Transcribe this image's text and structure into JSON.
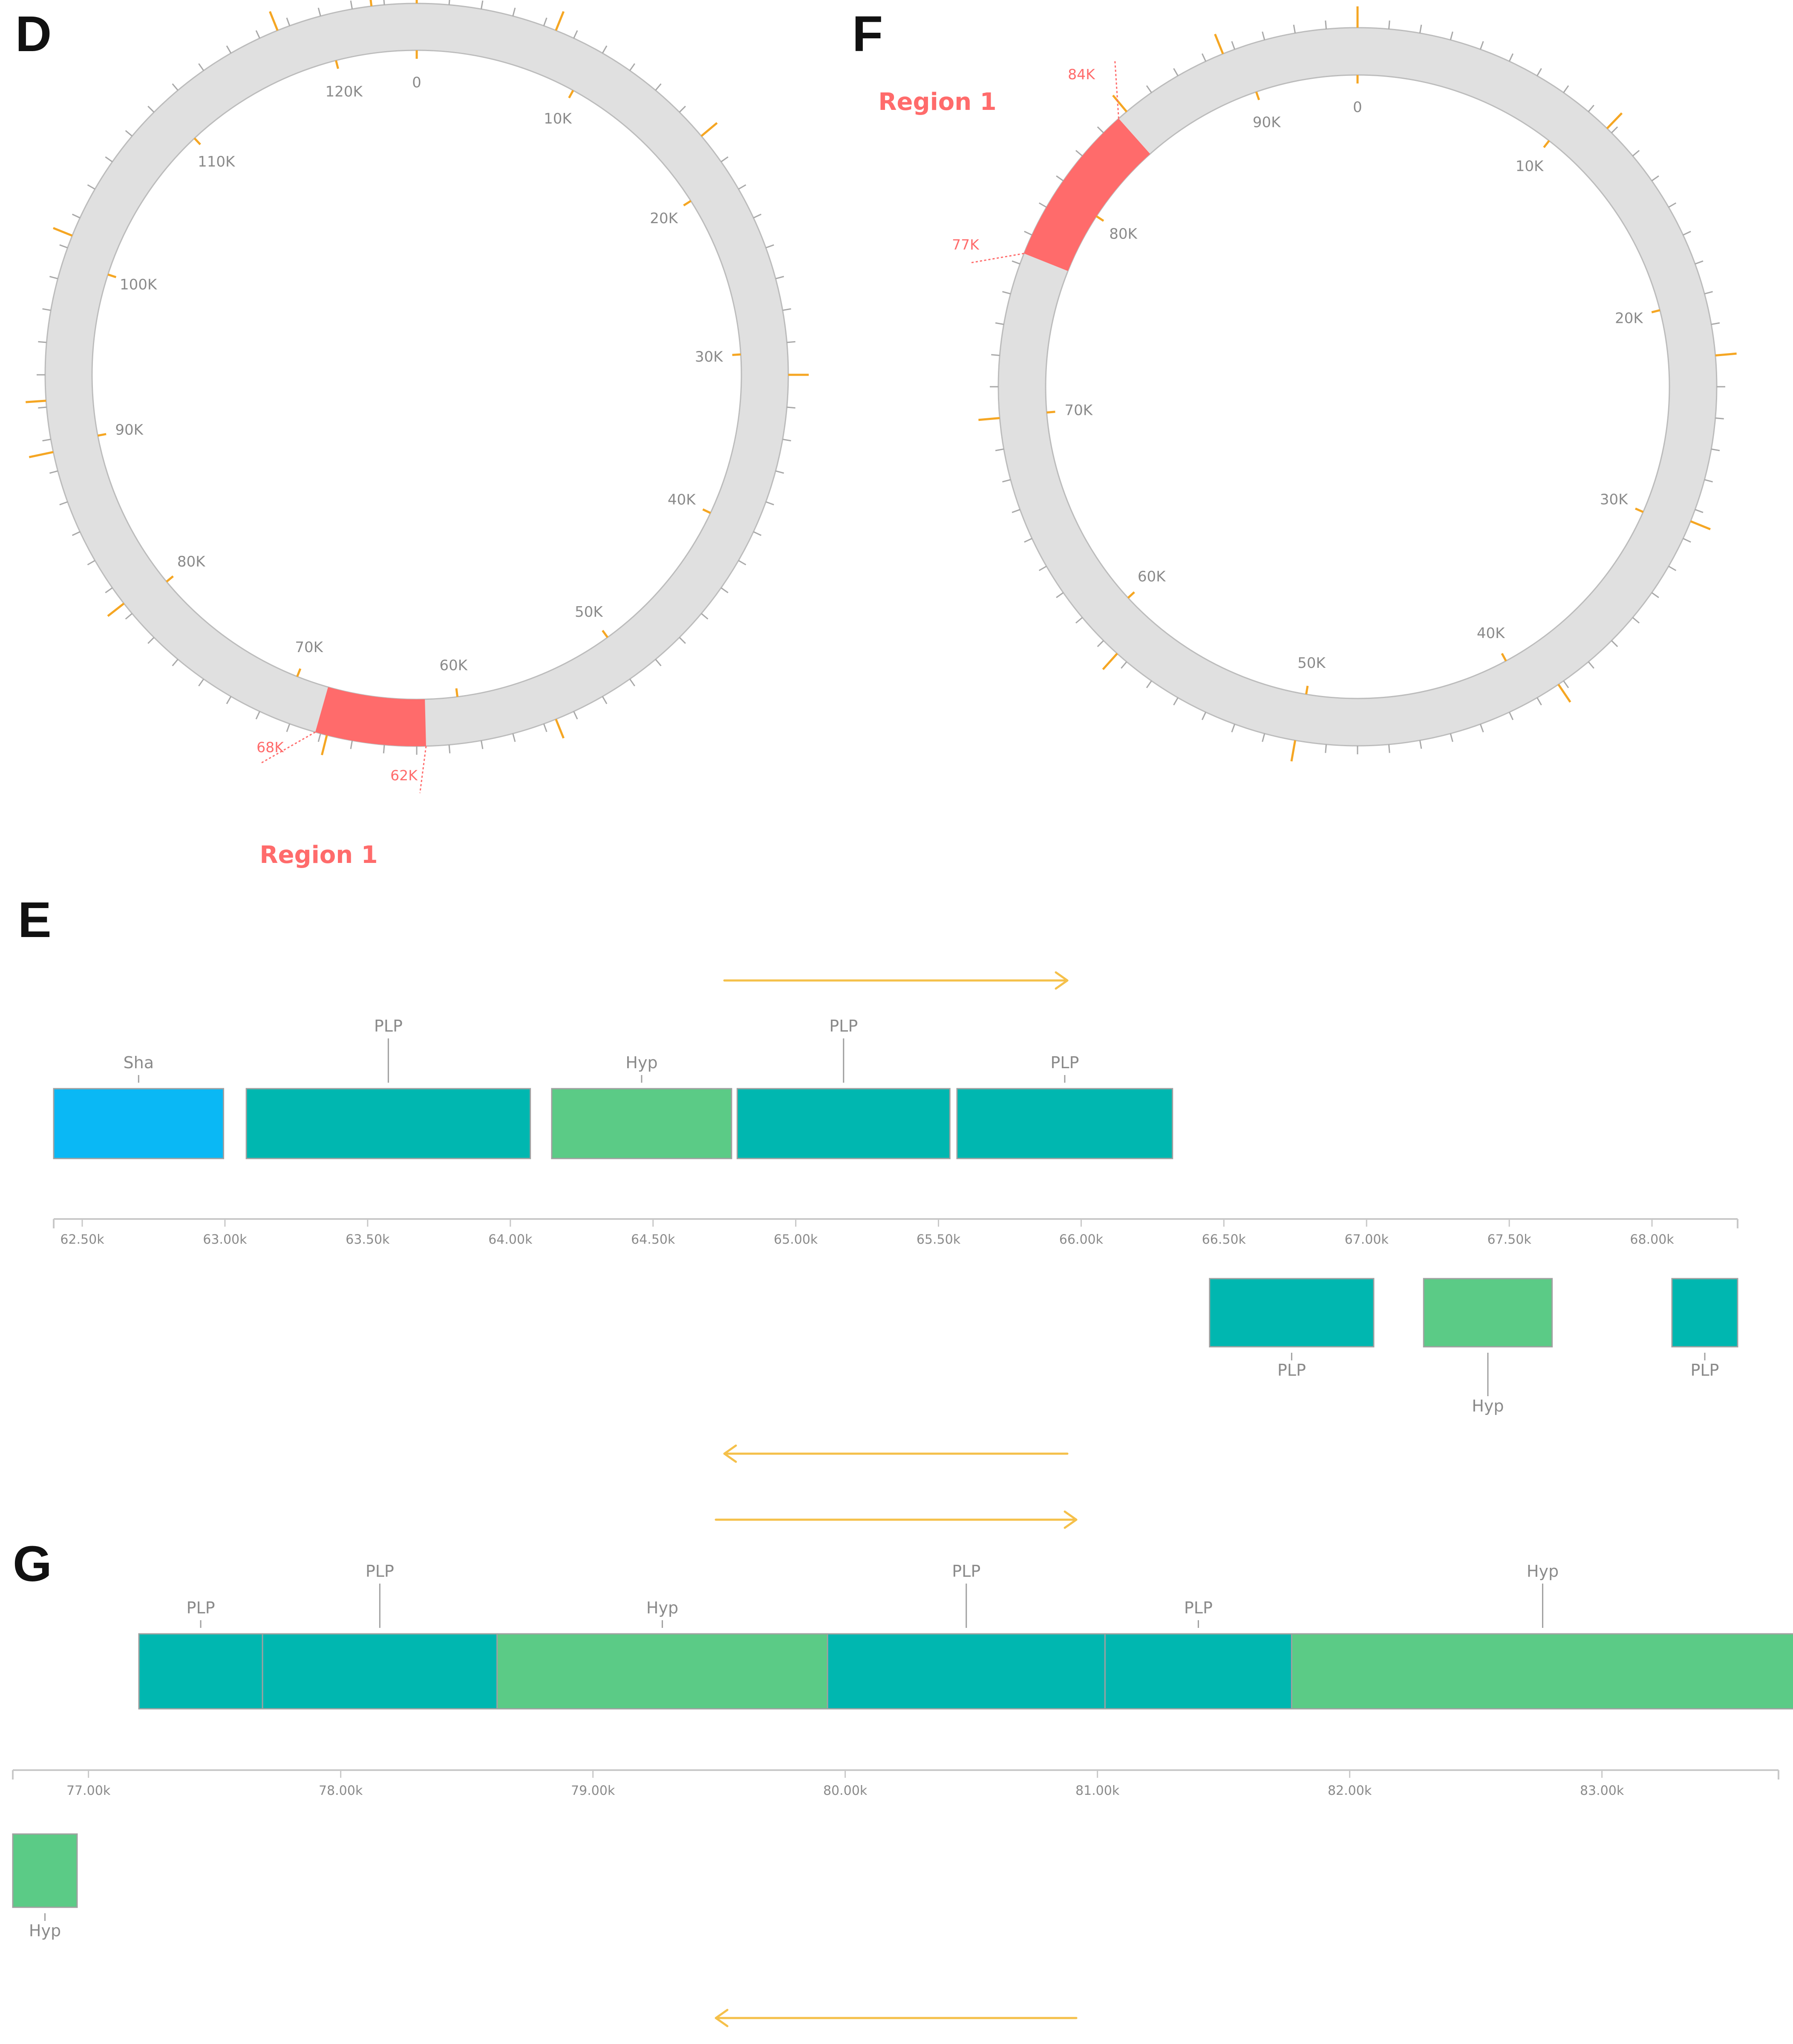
{
  "colors": {
    "ring": "#e0e0e0",
    "ring_stroke": "#bcbcbc",
    "region": "#ff6b6b",
    "tick": "#a8a8a8",
    "gc_tick": "#f5a623",
    "arrow": "#f5c04a",
    "PLP": "#00b7b0",
    "Hyp": "#5bcb86",
    "Sha": "#0ab8f5",
    "gene_stroke": "#a0a0a0",
    "axis": "#c8c8c8"
  },
  "panels": {
    "D": {
      "letter": "D",
      "genome_length": 125000,
      "position_labels": [
        "0",
        "10K",
        "20K",
        "30K",
        "40K",
        "50K",
        "60K",
        "70K",
        "80K",
        "90K",
        "100K",
        "110K",
        "120K"
      ],
      "region": {
        "title": "Region 1",
        "start": 62000,
        "end": 68000,
        "start_label": "62K",
        "end_label": "68K"
      }
    },
    "F": {
      "letter": "F",
      "genome_length": 95000,
      "position_labels": [
        "0",
        "10K",
        "20K",
        "30K",
        "40K",
        "50K",
        "60K",
        "70K",
        "80K",
        "90K"
      ],
      "region": {
        "title": "Region 1",
        "start": 77000,
        "end": 84000,
        "start_label": "77K",
        "end_label": "84K"
      }
    },
    "E": {
      "letter": "E",
      "axis": {
        "min": 62400,
        "max": 68300,
        "tick_labels": [
          "62.50k",
          "63.00k",
          "63.50k",
          "64.00k",
          "64.50k",
          "65.00k",
          "65.50k",
          "66.00k",
          "66.50k",
          "67.00k",
          "67.50k",
          "68.00k"
        ]
      },
      "forward_genes": [
        {
          "label": "Sha",
          "type": "Sha",
          "start": 62400,
          "end": 62995
        },
        {
          "label": "PLP",
          "type": "PLP",
          "start": 63075,
          "end": 64070
        },
        {
          "label": "Hyp",
          "type": "Hyp",
          "start": 64145,
          "end": 64775
        },
        {
          "label": "PLP",
          "type": "PLP",
          "start": 64795,
          "end": 65540
        },
        {
          "label": "PLP",
          "type": "PLP",
          "start": 65565,
          "end": 66320
        }
      ],
      "reverse_genes": [
        {
          "label": "PLP",
          "type": "PLP",
          "start": 66450,
          "end": 67025
        },
        {
          "label": "Hyp",
          "type": "Hyp",
          "start": 67200,
          "end": 67650
        },
        {
          "label": "PLP",
          "type": "PLP",
          "start": 68070,
          "end": 68300
        }
      ]
    },
    "G": {
      "letter": "G",
      "axis": {
        "min": 76700,
        "max": 83700,
        "tick_labels": [
          "77.00k",
          "78.00k",
          "79.00k",
          "80.00k",
          "81.00k",
          "82.00k",
          "83.00k"
        ]
      },
      "forward_genes": [
        {
          "label": "PLP",
          "type": "PLP",
          "start": 77200,
          "end": 77690
        },
        {
          "label": "PLP",
          "type": "PLP",
          "start": 77690,
          "end": 78620
        },
        {
          "label": "Hyp",
          "type": "Hyp",
          "start": 78620,
          "end": 79930
        },
        {
          "label": "PLP",
          "type": "PLP",
          "start": 79930,
          "end": 81030
        },
        {
          "label": "PLP",
          "type": "PLP",
          "start": 81030,
          "end": 81770
        },
        {
          "label": "Hyp",
          "type": "Hyp",
          "start": 81770,
          "end": 83760
        }
      ],
      "reverse_genes": [
        {
          "label": "Hyp",
          "type": "Hyp",
          "start": 76700,
          "end": 76955
        }
      ]
    }
  }
}
